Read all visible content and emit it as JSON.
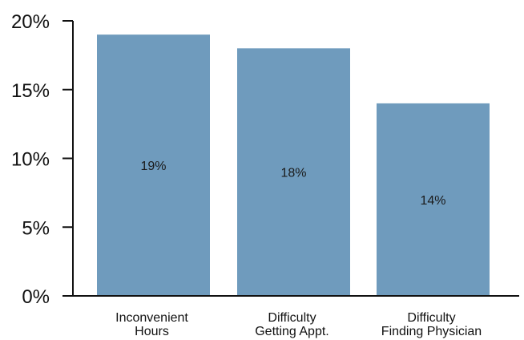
{
  "chart_data": {
    "type": "bar",
    "title": "",
    "xlabel": "",
    "ylabel": "",
    "categories": [
      [
        "Inconvenient",
        "Hours"
      ],
      [
        "Difficulty",
        "Getting Appt."
      ],
      [
        "Difficulty",
        "Finding Physician"
      ]
    ],
    "values": [
      19,
      18,
      14
    ],
    "data_labels": [
      "19%",
      "18%",
      "14%"
    ],
    "ylim": [
      0,
      20
    ],
    "yticks": [
      0,
      5,
      10,
      15,
      20
    ],
    "ytick_labels": [
      "0%",
      "5%",
      "10%",
      "15%",
      "20%"
    ],
    "grid": false,
    "legend": "none",
    "colors": {
      "bar": "#6f9bbd",
      "axis": "#111111",
      "text": "#111111"
    }
  }
}
